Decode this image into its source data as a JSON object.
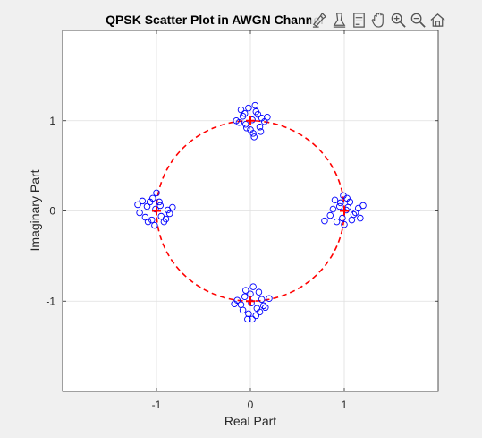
{
  "chart_data": {
    "type": "scatter",
    "title": "QPSK Scatter Plot in AWGN Channel",
    "xlabel": "Real Part",
    "ylabel": "Imaginary Part",
    "xlim": [
      -2,
      2
    ],
    "ylim": [
      -2,
      2
    ],
    "xticks": [
      -1,
      0,
      1
    ],
    "yticks": [
      -1,
      0,
      1
    ],
    "xtick_labels": [
      "-1",
      "0",
      "1"
    ],
    "ytick_labels": [
      "-1",
      "0",
      "1"
    ],
    "grid": true,
    "series": [
      {
        "marker": "circle-open",
        "color": "#0000ff",
        "points": [
          [
            1.02,
            0.01
          ],
          [
            0.95,
            0.05
          ],
          [
            1.1,
            -0.04
          ],
          [
            0.98,
            -0.08
          ],
          [
            1.06,
            0.1
          ],
          [
            0.88,
            0.02
          ],
          [
            1.15,
            0.03
          ],
          [
            0.92,
            -0.12
          ],
          [
            1.03,
            0.14
          ],
          [
            1.0,
            -0.15
          ],
          [
            0.79,
            -0.11
          ],
          [
            1.2,
            0.06
          ],
          [
            0.96,
            0.09
          ],
          [
            1.08,
            -0.1
          ],
          [
            0.9,
            0.12
          ],
          [
            1.12,
            -0.02
          ],
          [
            0.85,
            -0.05
          ],
          [
            1.04,
            0.04
          ],
          [
            0.99,
            0.17
          ],
          [
            1.17,
            -0.08
          ],
          [
            0.02,
            1.01
          ],
          [
            -0.05,
            0.96
          ],
          [
            0.06,
            1.1
          ],
          [
            0.1,
            0.93
          ],
          [
            -0.08,
            1.05
          ],
          [
            0.03,
            0.86
          ],
          [
            -0.02,
            1.14
          ],
          [
            0.12,
            1.03
          ],
          [
            -0.12,
            0.98
          ],
          [
            0.15,
            0.99
          ],
          [
            0.04,
            0.82
          ],
          [
            -0.1,
            1.12
          ],
          [
            0.08,
            1.07
          ],
          [
            0.0,
            0.9
          ],
          [
            -0.15,
            1.0
          ],
          [
            0.18,
            1.04
          ],
          [
            -0.04,
            0.92
          ],
          [
            0.05,
            1.17
          ],
          [
            0.11,
            0.88
          ],
          [
            -0.06,
            1.08
          ],
          [
            -1.01,
            0.02
          ],
          [
            -0.95,
            -0.06
          ],
          [
            -1.1,
            0.05
          ],
          [
            -0.97,
            0.1
          ],
          [
            -1.05,
            -0.1
          ],
          [
            -0.88,
            0.01
          ],
          [
            -1.18,
            -0.02
          ],
          [
            -0.92,
            -0.12
          ],
          [
            -1.04,
            0.14
          ],
          [
            -1.0,
            0.2
          ],
          [
            -1.2,
            0.07
          ],
          [
            -0.83,
            0.04
          ],
          [
            -1.12,
            -0.07
          ],
          [
            -0.96,
            0.06
          ],
          [
            -1.07,
            0.1
          ],
          [
            -0.9,
            -0.09
          ],
          [
            -1.15,
            0.11
          ],
          [
            -1.02,
            -0.16
          ],
          [
            -0.86,
            -0.03
          ],
          [
            -1.09,
            -0.12
          ],
          [
            0.01,
            -1.02
          ],
          [
            -0.06,
            -0.95
          ],
          [
            0.07,
            -1.08
          ],
          [
            0.12,
            -0.98
          ],
          [
            -0.1,
            -1.04
          ],
          [
            0.03,
            -0.84
          ],
          [
            -0.02,
            -1.14
          ],
          [
            0.14,
            -1.05
          ],
          [
            -0.14,
            -0.99
          ],
          [
            0.2,
            -0.97
          ],
          [
            -0.03,
            -1.2
          ],
          [
            0.02,
            -1.2
          ],
          [
            0.09,
            -0.9
          ],
          [
            -0.08,
            -1.1
          ],
          [
            0.0,
            -0.92
          ],
          [
            -0.17,
            -1.03
          ],
          [
            0.16,
            -1.07
          ],
          [
            -0.05,
            -0.88
          ],
          [
            0.06,
            -1.16
          ],
          [
            0.1,
            -1.12
          ]
        ]
      },
      {
        "marker": "plus",
        "color": "#ff0000",
        "points": [
          [
            1,
            0
          ],
          [
            0,
            1
          ],
          [
            -1,
            0
          ],
          [
            0,
            -1
          ]
        ]
      }
    ],
    "reference_circle": {
      "radius": 1,
      "color": "#ff0000",
      "style": "dashed"
    }
  },
  "toolbar": {
    "icons": [
      "brush-icon",
      "data-tip-icon",
      "restore-view-icon",
      "pan-icon",
      "zoom-in-icon",
      "zoom-out-icon",
      "home-icon"
    ]
  }
}
